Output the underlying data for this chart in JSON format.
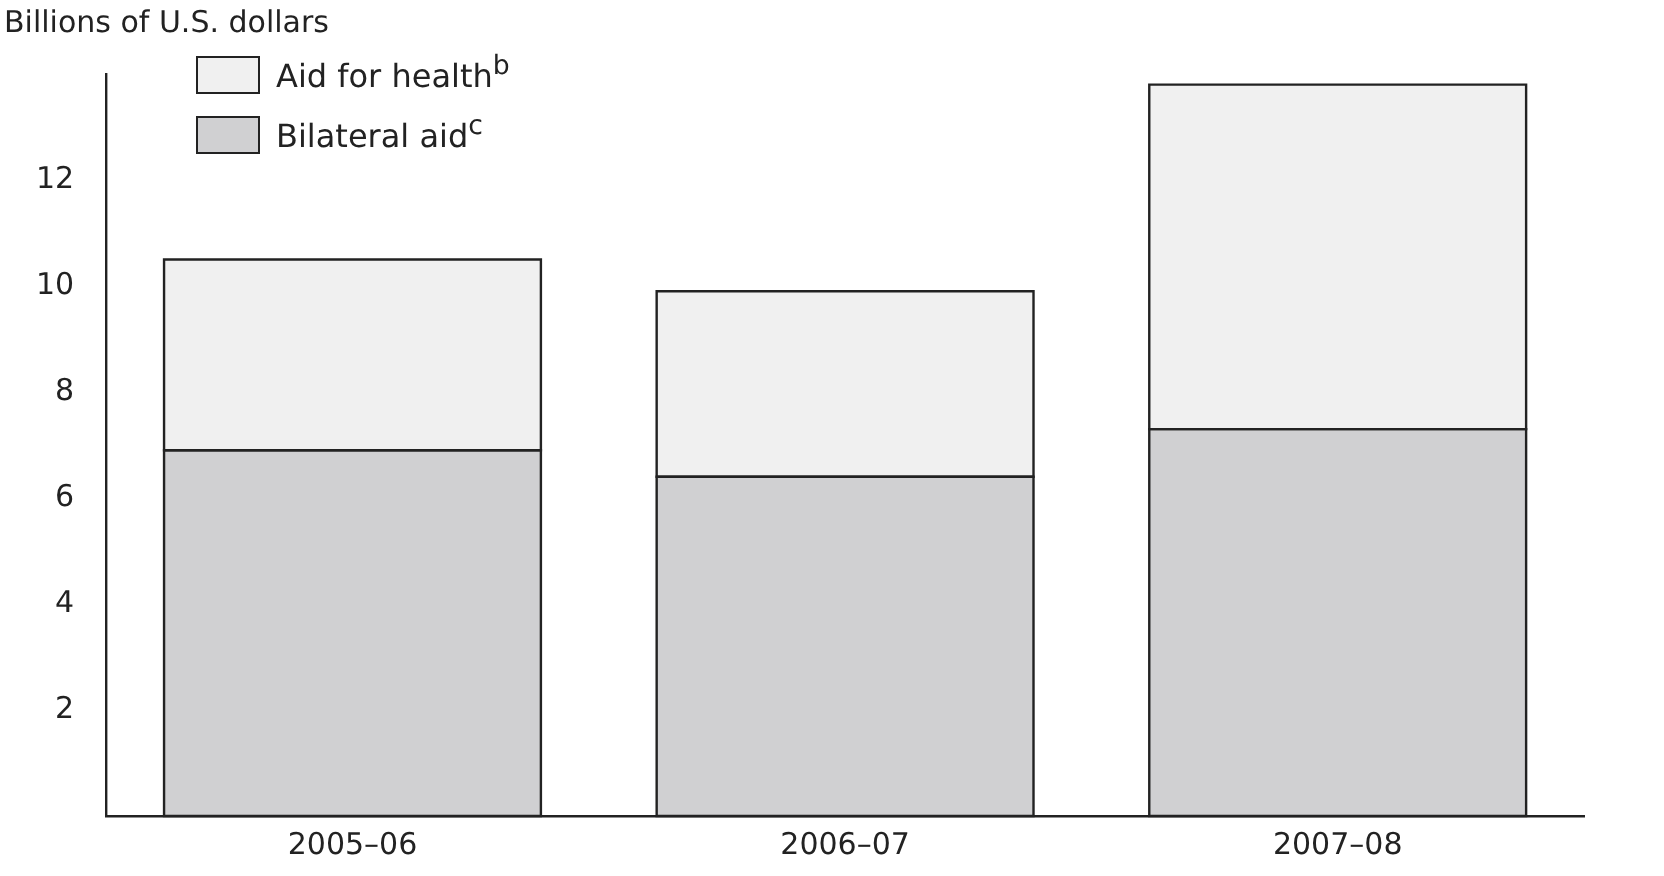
{
  "chart_data": {
    "type": "bar",
    "ylabel": "Billions of U.S. dollars",
    "categories": [
      "2005–06",
      "2006–07",
      "2007–08"
    ],
    "stacked": true,
    "series": [
      {
        "name": "Bilateral aid$^{c}$",
        "color": "#d0d0d2",
        "values": [
          6.9,
          6.4,
          7.3
        ]
      },
      {
        "name": "Aid for health$^{b}$",
        "color": "#f0f0f0",
        "values": [
          3.6,
          3.5,
          6.5
        ]
      }
    ],
    "ylim": [
      0,
      14
    ],
    "yticks": [
      2,
      4,
      6,
      8,
      10,
      12
    ],
    "grid": false,
    "legend": "top left"
  }
}
